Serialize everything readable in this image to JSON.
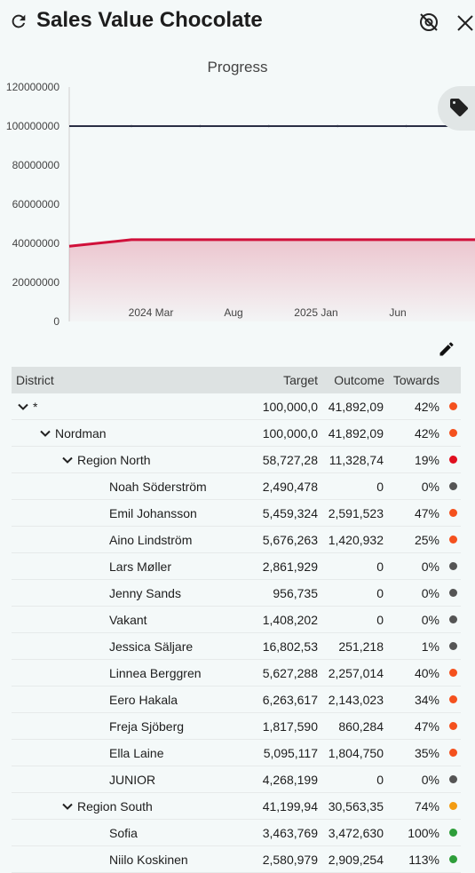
{
  "header": {
    "title": "Sales Value Chocolate"
  },
  "chart_data": {
    "type": "area",
    "title": "Progress",
    "ylim": [
      0,
      120000000
    ],
    "yticks": [
      "0",
      "20000000",
      "40000000",
      "60000000",
      "80000000",
      "100000000",
      "120000000"
    ],
    "xticks": [
      "2024 Mar",
      "Aug",
      "2025 Jan",
      "Jun"
    ],
    "series": [
      {
        "name": "Target",
        "color": "#2a2f45",
        "values": [
          100000000,
          100000000,
          100000000,
          100000000,
          100000000,
          100000000,
          100000000
        ]
      },
      {
        "name": "Outcome",
        "color": "#d0103a",
        "values": [
          38500000,
          41892090,
          41892090,
          41892090,
          41892090,
          41892090,
          41892090
        ]
      }
    ]
  },
  "table": {
    "headers": {
      "district": "District",
      "target": "Target",
      "outcome": "Outcome",
      "towards": "Towards"
    },
    "rows": [
      {
        "name": "*",
        "target": "100,000,0",
        "outcome": "41,892,09",
        "towards": "42%",
        "color": "#f4511e"
      },
      {
        "name": "Nordman",
        "target": "100,000,0",
        "outcome": "41,892,09",
        "towards": "42%",
        "color": "#f4511e"
      },
      {
        "name": "Region North",
        "target": "58,727,28",
        "outcome": "11,328,74",
        "towards": "19%",
        "color": "#e0101f"
      },
      {
        "name": "Noah Söderström",
        "target": "2,490,478",
        "outcome": "0",
        "towards": "0%",
        "color": "#555555"
      },
      {
        "name": "Emil Johansson",
        "target": "5,459,324",
        "outcome": "2,591,523",
        "towards": "47%",
        "color": "#f4511e"
      },
      {
        "name": "Aino Lindström",
        "target": "5,676,263",
        "outcome": "1,420,932",
        "towards": "25%",
        "color": "#f4511e"
      },
      {
        "name": "Lars Møller",
        "target": "2,861,929",
        "outcome": "0",
        "towards": "0%",
        "color": "#555555"
      },
      {
        "name": "Jenny Sands",
        "target": "956,735",
        "outcome": "0",
        "towards": "0%",
        "color": "#555555"
      },
      {
        "name": "Vakant",
        "target": "1,408,202",
        "outcome": "0",
        "towards": "0%",
        "color": "#555555"
      },
      {
        "name": "Jessica Säljare",
        "target": "16,802,53",
        "outcome": "251,218",
        "towards": "1%",
        "color": "#555555"
      },
      {
        "name": "Linnea Berggren",
        "target": "5,627,288",
        "outcome": "2,257,014",
        "towards": "40%",
        "color": "#f4511e"
      },
      {
        "name": "Eero Hakala",
        "target": "6,263,617",
        "outcome": "2,143,023",
        "towards": "34%",
        "color": "#f4511e"
      },
      {
        "name": "Freja Sjöberg",
        "target": "1,817,590",
        "outcome": "860,284",
        "towards": "47%",
        "color": "#f4511e"
      },
      {
        "name": "Ella Laine",
        "target": "5,095,117",
        "outcome": "1,804,750",
        "towards": "35%",
        "color": "#f4511e"
      },
      {
        "name": "JUNIOR",
        "target": "4,268,199",
        "outcome": "0",
        "towards": "0%",
        "color": "#555555"
      },
      {
        "name": "Region South",
        "target": "41,199,94",
        "outcome": "30,563,35",
        "towards": "74%",
        "color": "#f39c12"
      },
      {
        "name": "Sofia",
        "target": "3,463,769",
        "outcome": "3,472,630",
        "towards": "100%",
        "color": "#2e9e3a"
      },
      {
        "name": "Niilo Koskinen",
        "target": "2,580,979",
        "outcome": "2,909,254",
        "towards": "113%",
        "color": "#2e9e3a"
      }
    ]
  }
}
